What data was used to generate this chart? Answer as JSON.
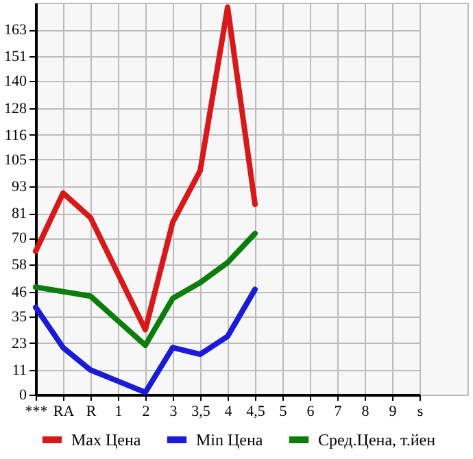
{
  "chart_data": {
    "type": "line",
    "categories": [
      "***",
      "RA",
      "R",
      "1",
      "2",
      "3",
      "3,5",
      "4",
      "4,5",
      "5",
      "6",
      "7",
      "8",
      "9",
      "s"
    ],
    "series": [
      {
        "name": "Max Цена",
        "color": "#d7191c",
        "values": [
          64,
          90,
          79,
          54,
          29,
          77,
          100,
          173,
          85,
          null,
          null,
          null,
          null,
          null,
          null
        ]
      },
      {
        "name": "Min Цена",
        "color": "#1a1ad7",
        "values": [
          39,
          21,
          11,
          6,
          1,
          21,
          18,
          26,
          47,
          null,
          null,
          null,
          null,
          null,
          null
        ]
      },
      {
        "name": "Сред.Цена, т.йен",
        "color": "#0a7d0a",
        "values": [
          48,
          46,
          44,
          33,
          22,
          43,
          50,
          59,
          72,
          null,
          null,
          null,
          null,
          null,
          null
        ]
      }
    ],
    "ylim": [
      0,
      175
    ],
    "yticks": [
      0,
      11,
      23,
      35,
      46,
      58,
      70,
      81,
      93,
      105,
      116,
      128,
      140,
      151,
      163
    ],
    "grid": true,
    "legend": "bottom",
    "marker": "none",
    "line_style": "solid"
  }
}
